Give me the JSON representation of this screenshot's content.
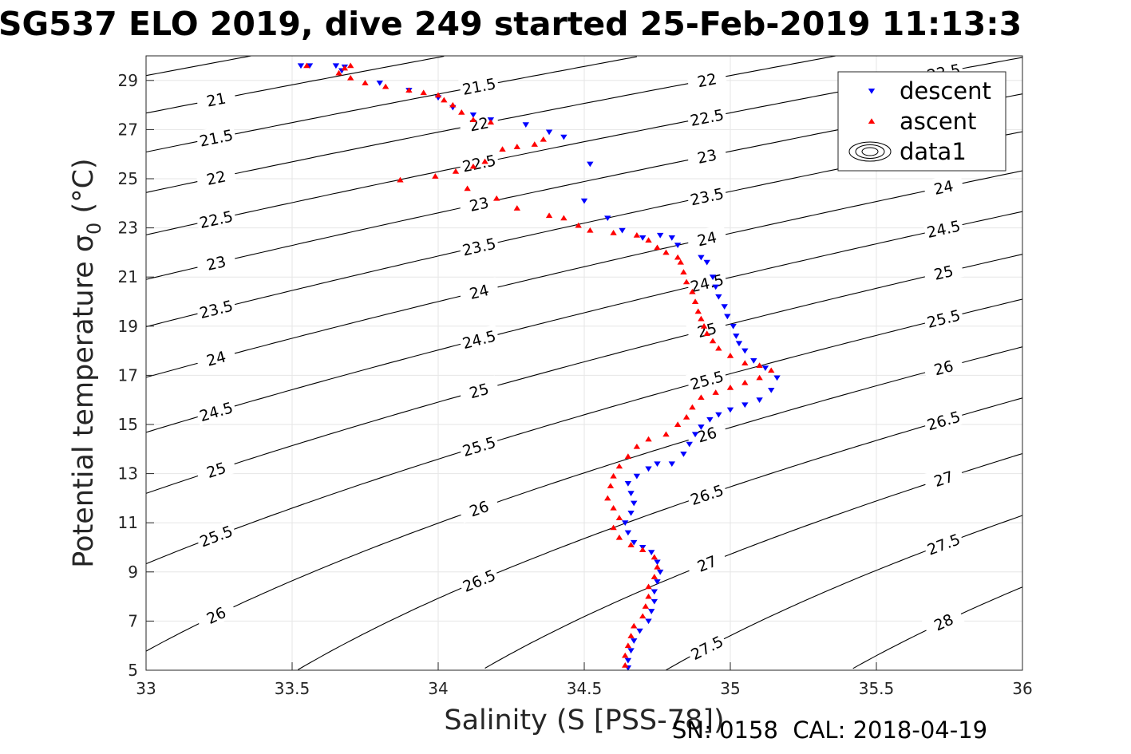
{
  "chart_data": {
    "type": "scatter",
    "title": "SG537 ELO 2019, dive 249 started 25-Feb-2019 11:13:3",
    "xlabel": "Salinity (S [PSS-78])",
    "ylabel": "Potential temperature σ",
    "ylabel_subscript": "0",
    "ylabel_unit": " (°C)",
    "xlim": [
      33,
      36
    ],
    "ylim": [
      5,
      30
    ],
    "x_ticks": [
      "33",
      "33.5",
      "34",
      "34.5",
      "35",
      "35.5",
      "36"
    ],
    "y_ticks": [
      "5",
      "7",
      "9",
      "11",
      "13",
      "15",
      "17",
      "19",
      "21",
      "23",
      "25",
      "27",
      "29"
    ],
    "grid": true,
    "legend_position": "top-right",
    "legend": [
      {
        "label": "descent",
        "marker": "triangle-down",
        "color": "#0000ff"
      },
      {
        "label": "ascent",
        "marker": "triangle-up",
        "color": "#ff0000"
      },
      {
        "label": "data1",
        "marker": "contour"
      }
    ],
    "contour_levels": [
      20.5,
      21,
      21.5,
      22,
      22.5,
      23,
      23.5,
      24,
      24.5,
      25,
      25.5,
      26,
      26.5,
      27,
      27.5,
      28
    ],
    "series": [
      {
        "name": "descent",
        "color": "#0000ff",
        "marker": "triangle-down",
        "points": [
          [
            33.53,
            29.6
          ],
          [
            33.56,
            29.6
          ],
          [
            33.65,
            29.6
          ],
          [
            33.68,
            29.55
          ],
          [
            33.67,
            29.4
          ],
          [
            33.8,
            28.9
          ],
          [
            33.9,
            28.6
          ],
          [
            34.0,
            28.3
          ],
          [
            34.05,
            27.9
          ],
          [
            34.12,
            27.6
          ],
          [
            34.18,
            27.4
          ],
          [
            34.3,
            27.2
          ],
          [
            34.38,
            26.9
          ],
          [
            34.43,
            26.7
          ],
          [
            34.52,
            25.6
          ],
          [
            34.5,
            24.1
          ],
          [
            34.58,
            23.4
          ],
          [
            34.63,
            22.9
          ],
          [
            34.7,
            22.6
          ],
          [
            34.76,
            22.7
          ],
          [
            34.8,
            22.6
          ],
          [
            34.82,
            22.3
          ],
          [
            34.9,
            21.8
          ],
          [
            34.92,
            21.6
          ],
          [
            34.94,
            21.0
          ],
          [
            34.95,
            20.6
          ],
          [
            34.96,
            20.2
          ],
          [
            34.98,
            19.8
          ],
          [
            34.99,
            19.4
          ],
          [
            35.01,
            19.0
          ],
          [
            35.02,
            18.6
          ],
          [
            35.03,
            18.3
          ],
          [
            35.05,
            18.0
          ],
          [
            35.08,
            17.6
          ],
          [
            35.12,
            17.3
          ],
          [
            35.16,
            16.9
          ],
          [
            35.14,
            16.4
          ],
          [
            35.1,
            16.0
          ],
          [
            35.05,
            15.8
          ],
          [
            35.0,
            15.6
          ],
          [
            34.96,
            15.4
          ],
          [
            34.93,
            15.2
          ],
          [
            34.9,
            14.9
          ],
          [
            34.88,
            14.6
          ],
          [
            34.86,
            14.2
          ],
          [
            34.84,
            13.8
          ],
          [
            34.8,
            13.4
          ],
          [
            34.75,
            13.4
          ],
          [
            34.72,
            13.2
          ],
          [
            34.68,
            12.9
          ],
          [
            34.65,
            12.6
          ],
          [
            34.66,
            12.2
          ],
          [
            34.67,
            11.8
          ],
          [
            34.66,
            11.4
          ],
          [
            34.64,
            11.0
          ],
          [
            34.65,
            10.6
          ],
          [
            34.67,
            10.2
          ],
          [
            34.7,
            10.0
          ],
          [
            34.73,
            9.8
          ],
          [
            34.75,
            9.4
          ],
          [
            34.76,
            9.0
          ],
          [
            34.75,
            8.6
          ],
          [
            34.74,
            8.2
          ],
          [
            34.74,
            7.8
          ],
          [
            34.73,
            7.4
          ],
          [
            34.72,
            7.0
          ],
          [
            34.69,
            6.6
          ],
          [
            34.67,
            6.2
          ],
          [
            34.66,
            5.8
          ],
          [
            34.65,
            5.4
          ],
          [
            34.65,
            5.1
          ]
        ]
      },
      {
        "name": "ascent",
        "color": "#ff0000",
        "marker": "triangle-up",
        "points": [
          [
            33.55,
            29.6
          ],
          [
            33.7,
            29.6
          ],
          [
            33.68,
            29.5
          ],
          [
            33.66,
            29.3
          ],
          [
            33.7,
            29.1
          ],
          [
            33.75,
            28.9
          ],
          [
            33.82,
            28.75
          ],
          [
            33.9,
            28.6
          ],
          [
            33.95,
            28.5
          ],
          [
            34.0,
            28.4
          ],
          [
            34.02,
            28.2
          ],
          [
            34.05,
            28.0
          ],
          [
            34.08,
            27.7
          ],
          [
            34.12,
            27.4
          ],
          [
            34.18,
            27.3
          ],
          [
            34.36,
            26.6
          ],
          [
            34.33,
            26.4
          ],
          [
            34.27,
            26.3
          ],
          [
            34.22,
            26.2
          ],
          [
            34.16,
            25.7
          ],
          [
            34.12,
            25.5
          ],
          [
            34.06,
            25.3
          ],
          [
            33.99,
            25.1
          ],
          [
            33.87,
            24.95
          ],
          [
            34.1,
            24.6
          ],
          [
            34.2,
            24.2
          ],
          [
            34.27,
            23.8
          ],
          [
            34.38,
            23.5
          ],
          [
            34.43,
            23.4
          ],
          [
            34.48,
            23.1
          ],
          [
            34.52,
            22.9
          ],
          [
            34.6,
            22.8
          ],
          [
            34.68,
            22.7
          ],
          [
            34.72,
            22.5
          ],
          [
            34.75,
            22.2
          ],
          [
            34.78,
            22.0
          ],
          [
            34.82,
            21.8
          ],
          [
            34.83,
            21.6
          ],
          [
            34.84,
            21.2
          ],
          [
            34.85,
            20.8
          ],
          [
            34.87,
            20.4
          ],
          [
            34.88,
            20.0
          ],
          [
            34.89,
            19.6
          ],
          [
            34.9,
            19.3
          ],
          [
            34.91,
            19.0
          ],
          [
            34.92,
            18.7
          ],
          [
            34.94,
            18.4
          ],
          [
            34.96,
            18.1
          ],
          [
            35.0,
            17.8
          ],
          [
            35.05,
            17.5
          ],
          [
            35.1,
            17.4
          ],
          [
            35.14,
            17.2
          ],
          [
            35.1,
            16.9
          ],
          [
            35.05,
            16.7
          ],
          [
            35.0,
            16.5
          ],
          [
            34.95,
            16.3
          ],
          [
            34.9,
            16.1
          ],
          [
            34.87,
            15.7
          ],
          [
            34.85,
            15.3
          ],
          [
            34.82,
            15.0
          ],
          [
            34.78,
            14.6
          ],
          [
            34.72,
            14.4
          ],
          [
            34.68,
            14.1
          ],
          [
            34.65,
            13.7
          ],
          [
            34.62,
            13.3
          ],
          [
            34.6,
            12.9
          ],
          [
            34.59,
            12.5
          ],
          [
            34.58,
            12.0
          ],
          [
            34.6,
            11.6
          ],
          [
            34.62,
            11.2
          ],
          [
            34.6,
            10.8
          ],
          [
            34.62,
            10.4
          ],
          [
            34.66,
            10.1
          ],
          [
            34.7,
            9.9
          ],
          [
            34.74,
            9.6
          ],
          [
            34.75,
            9.2
          ],
          [
            34.74,
            8.8
          ],
          [
            34.72,
            8.4
          ],
          [
            34.72,
            8.0
          ],
          [
            34.71,
            7.6
          ],
          [
            34.7,
            7.2
          ],
          [
            34.67,
            6.8
          ],
          [
            34.66,
            6.4
          ],
          [
            34.65,
            6.0
          ],
          [
            34.64,
            5.6
          ],
          [
            34.64,
            5.2
          ]
        ]
      }
    ]
  },
  "footer": {
    "sn_text": "SN: 0158",
    "cal_text": "CAL: 2018-04-19"
  }
}
